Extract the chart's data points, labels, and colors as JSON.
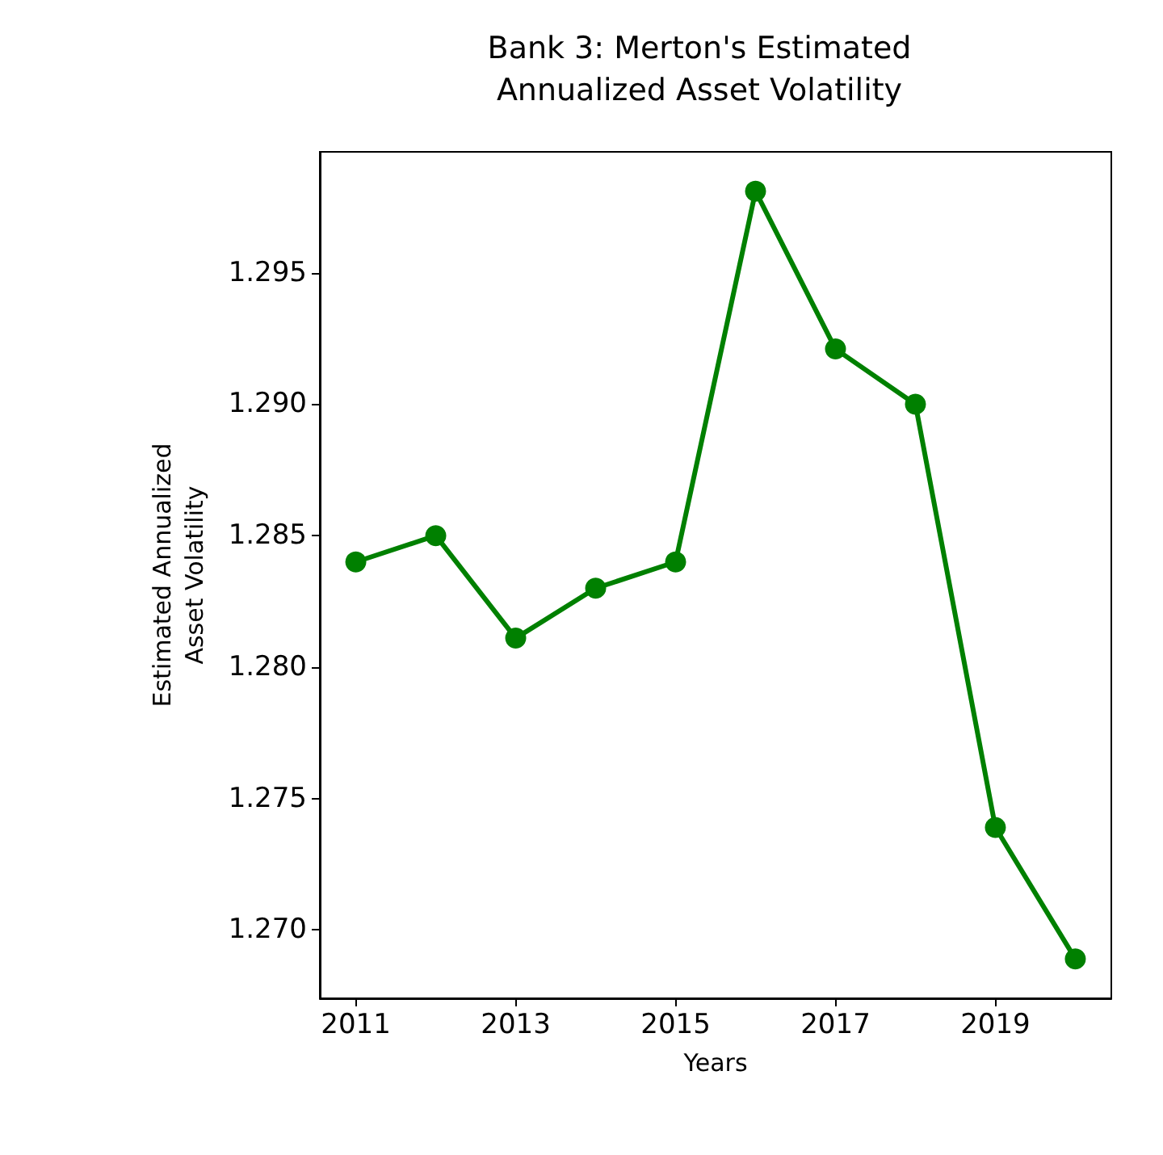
{
  "chart_data": {
    "type": "line",
    "title": "Bank 3: Merton's Estimated\nAnnualized Asset Volatility",
    "xlabel": "Years",
    "ylabel": "Estimated Annualized\nAsset Volatility",
    "x": [
      2011,
      2012,
      2013,
      2014,
      2015,
      2016,
      2017,
      2018,
      2019,
      2020
    ],
    "series": [
      {
        "color": "#008000",
        "values": [
          1.284,
          1.285,
          1.2811,
          1.283,
          1.284,
          1.2981,
          1.2921,
          1.29,
          1.2739,
          1.2689
        ]
      }
    ],
    "xlim": [
      2010.55,
      2020.45
    ],
    "xticks": [
      2011,
      2013,
      2015,
      2017,
      2019
    ],
    "ylim": [
      1.2674,
      1.2996
    ],
    "yticks": [
      {
        "value": 1.27,
        "label": "1.270"
      },
      {
        "value": 1.275,
        "label": "1.275"
      },
      {
        "value": 1.28,
        "label": "1.280"
      },
      {
        "value": 1.285,
        "label": "1.285"
      },
      {
        "value": 1.29,
        "label": "1.290"
      },
      {
        "value": 1.295,
        "label": "1.295"
      }
    ],
    "grid": false,
    "marker": "circle",
    "line_style": "solid"
  }
}
